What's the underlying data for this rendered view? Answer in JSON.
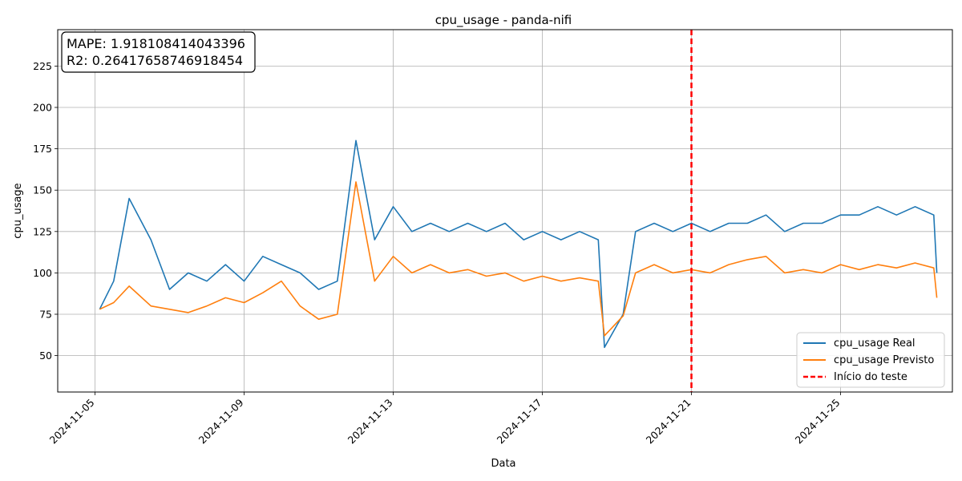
{
  "chart_data": {
    "type": "line",
    "title": "cpu_usage - panda-nifi",
    "xlabel": "Data",
    "ylabel": "cpu_usage",
    "x_range": [
      "2024-11-04",
      "2024-11-28"
    ],
    "ylim": [
      28,
      247
    ],
    "x_ticks": [
      "2024-11-05",
      "2024-11-09",
      "2024-11-13",
      "2024-11-17",
      "2024-11-21",
      "2024-11-25"
    ],
    "y_ticks": [
      50,
      75,
      100,
      125,
      150,
      175,
      200,
      225
    ],
    "grid": true,
    "legend_position": "lower-right",
    "metrics": [
      "MAPE: 1.918108414043396",
      "R2: 0.26417658746918454"
    ],
    "test_start": "2024-11-21",
    "series": [
      {
        "name": "cpu_usage Real",
        "color": "#1f77b4",
        "points": [
          [
            "2024-11-05T03:00",
            78
          ],
          [
            "2024-11-05T12:00",
            95
          ],
          [
            "2024-11-05T22:00",
            145
          ],
          [
            "2024-11-06T12:00",
            120
          ],
          [
            "2024-11-07T00:00",
            90
          ],
          [
            "2024-11-07T12:00",
            100
          ],
          [
            "2024-11-08T00:00",
            95
          ],
          [
            "2024-11-08T12:00",
            105
          ],
          [
            "2024-11-09T00:00",
            95
          ],
          [
            "2024-11-09T12:00",
            110
          ],
          [
            "2024-11-10T00:00",
            105
          ],
          [
            "2024-11-10T12:00",
            100
          ],
          [
            "2024-11-11T00:00",
            90
          ],
          [
            "2024-11-11T12:00",
            95
          ],
          [
            "2024-11-12T00:00",
            180
          ],
          [
            "2024-11-12T12:00",
            120
          ],
          [
            "2024-11-13T00:00",
            140
          ],
          [
            "2024-11-13T12:00",
            125
          ],
          [
            "2024-11-14T00:00",
            130
          ],
          [
            "2024-11-14T12:00",
            125
          ],
          [
            "2024-11-15T00:00",
            130
          ],
          [
            "2024-11-15T12:00",
            125
          ],
          [
            "2024-11-16T00:00",
            130
          ],
          [
            "2024-11-16T12:00",
            120
          ],
          [
            "2024-11-17T00:00",
            125
          ],
          [
            "2024-11-17T12:00",
            120
          ],
          [
            "2024-11-18T00:00",
            125
          ],
          [
            "2024-11-18T12:00",
            120
          ],
          [
            "2024-11-18T16:00",
            55
          ],
          [
            "2024-11-19T04:00",
            75
          ],
          [
            "2024-11-19T12:00",
            125
          ],
          [
            "2024-11-20T00:00",
            130
          ],
          [
            "2024-11-20T12:00",
            125
          ],
          [
            "2024-11-21T00:00",
            130
          ],
          [
            "2024-11-21T12:00",
            125
          ],
          [
            "2024-11-22T00:00",
            130
          ],
          [
            "2024-11-22T12:00",
            130
          ],
          [
            "2024-11-23T00:00",
            135
          ],
          [
            "2024-11-23T12:00",
            125
          ],
          [
            "2024-11-24T00:00",
            130
          ],
          [
            "2024-11-24T12:00",
            130
          ],
          [
            "2024-11-25T00:00",
            135
          ],
          [
            "2024-11-25T12:00",
            135
          ],
          [
            "2024-11-26T00:00",
            140
          ],
          [
            "2024-11-26T12:00",
            135
          ],
          [
            "2024-11-27T00:00",
            140
          ],
          [
            "2024-11-27T12:00",
            135
          ],
          [
            "2024-11-27T14:00",
            100
          ]
        ]
      },
      {
        "name": "cpu_usage Previsto",
        "color": "#ff7f0e",
        "points": [
          [
            "2024-11-05T03:00",
            78
          ],
          [
            "2024-11-05T12:00",
            82
          ],
          [
            "2024-11-05T22:00",
            92
          ],
          [
            "2024-11-06T12:00",
            80
          ],
          [
            "2024-11-07T00:00",
            78
          ],
          [
            "2024-11-07T12:00",
            76
          ],
          [
            "2024-11-08T00:00",
            80
          ],
          [
            "2024-11-08T12:00",
            85
          ],
          [
            "2024-11-09T00:00",
            82
          ],
          [
            "2024-11-09T12:00",
            88
          ],
          [
            "2024-11-10T00:00",
            95
          ],
          [
            "2024-11-10T12:00",
            80
          ],
          [
            "2024-11-11T00:00",
            72
          ],
          [
            "2024-11-11T12:00",
            75
          ],
          [
            "2024-11-12T00:00",
            155
          ],
          [
            "2024-11-12T12:00",
            95
          ],
          [
            "2024-11-13T00:00",
            110
          ],
          [
            "2024-11-13T12:00",
            100
          ],
          [
            "2024-11-14T00:00",
            105
          ],
          [
            "2024-11-14T12:00",
            100
          ],
          [
            "2024-11-15T00:00",
            102
          ],
          [
            "2024-11-15T12:00",
            98
          ],
          [
            "2024-11-16T00:00",
            100
          ],
          [
            "2024-11-16T12:00",
            95
          ],
          [
            "2024-11-17T00:00",
            98
          ],
          [
            "2024-11-17T12:00",
            95
          ],
          [
            "2024-11-18T00:00",
            97
          ],
          [
            "2024-11-18T12:00",
            95
          ],
          [
            "2024-11-18T16:00",
            62
          ],
          [
            "2024-11-19T04:00",
            74
          ],
          [
            "2024-11-19T12:00",
            100
          ],
          [
            "2024-11-20T00:00",
            105
          ],
          [
            "2024-11-20T12:00",
            100
          ],
          [
            "2024-11-21T00:00",
            102
          ],
          [
            "2024-11-21T12:00",
            100
          ],
          [
            "2024-11-22T00:00",
            105
          ],
          [
            "2024-11-22T12:00",
            108
          ],
          [
            "2024-11-23T00:00",
            110
          ],
          [
            "2024-11-23T12:00",
            100
          ],
          [
            "2024-11-24T00:00",
            102
          ],
          [
            "2024-11-24T12:00",
            100
          ],
          [
            "2024-11-25T00:00",
            105
          ],
          [
            "2024-11-25T12:00",
            102
          ],
          [
            "2024-11-26T00:00",
            105
          ],
          [
            "2024-11-26T12:00",
            103
          ],
          [
            "2024-11-27T00:00",
            106
          ],
          [
            "2024-11-27T12:00",
            103
          ],
          [
            "2024-11-27T14:00",
            85
          ]
        ]
      }
    ],
    "threshold_line": {
      "name": "Início do teste",
      "color": "#ff0000",
      "x": "2024-11-21"
    }
  }
}
